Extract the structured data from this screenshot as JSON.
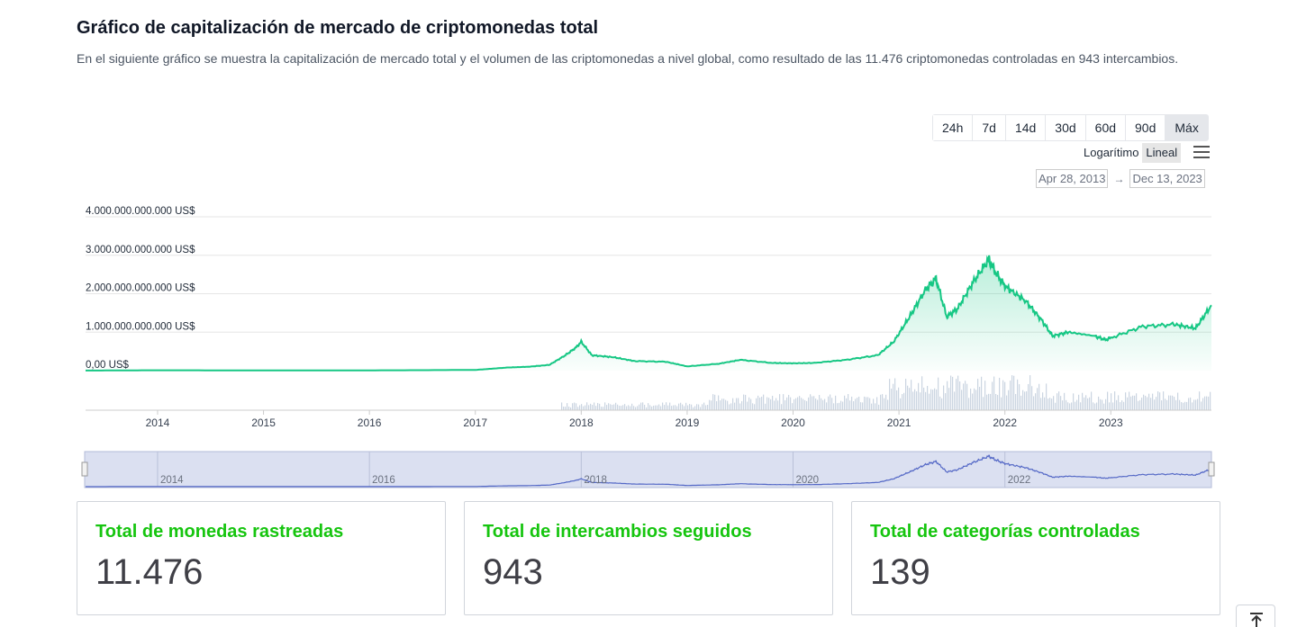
{
  "header": {
    "title": "Gráfico de capitalización de mercado de criptomonedas total",
    "description": "En el siguiente gráfico se muestra la capitalización de mercado total y el volumen de las criptomonedas a nivel global, como resultado de las 11.476 criptomonedas controladas en 943 intercambios."
  },
  "controls": {
    "ranges": [
      {
        "label": "24h",
        "active": false
      },
      {
        "label": "7d",
        "active": false
      },
      {
        "label": "14d",
        "active": false
      },
      {
        "label": "30d",
        "active": false
      },
      {
        "label": "60d",
        "active": false
      },
      {
        "label": "90d",
        "active": false
      },
      {
        "label": "Máx",
        "active": true
      }
    ],
    "scale_log": "Logarítimo",
    "scale_linear": "Lineal",
    "date_from": "Apr 28, 2013",
    "date_to": "Dec 13, 2023",
    "menu_icon": "hamburger-menu-icon"
  },
  "chart_data": {
    "type": "area",
    "ylim": [
      0,
      4000000000000
    ],
    "y_ticks": [
      "0,00 US$",
      "1.000.000.000.000 US$",
      "2.000.000.000.000 US$",
      "3.000.000.000.000 US$",
      "4.000.000.000.000 US$"
    ],
    "x_ticks": [
      "2014",
      "2015",
      "2016",
      "2017",
      "2018",
      "2019",
      "2020",
      "2021",
      "2022",
      "2023"
    ],
    "navigator_ticks": [
      "2014",
      "2016",
      "2018",
      "2020",
      "2022"
    ],
    "series": [
      {
        "name": "Capitalización de mercado",
        "color": "#16c784",
        "x": [
          2013.32,
          2014.0,
          2015.0,
          2016.0,
          2017.0,
          2017.3,
          2017.5,
          2017.7,
          2017.85,
          2017.95,
          2018.0,
          2018.1,
          2018.3,
          2018.5,
          2018.8,
          2019.0,
          2019.3,
          2019.5,
          2019.8,
          2020.0,
          2020.2,
          2020.5,
          2020.8,
          2020.95,
          2021.1,
          2021.25,
          2021.35,
          2021.45,
          2021.55,
          2021.7,
          2021.85,
          2021.9,
          2022.0,
          2022.2,
          2022.35,
          2022.45,
          2022.6,
          2022.85,
          2022.95,
          2023.0,
          2023.3,
          2023.6,
          2023.8,
          2023.95
        ],
        "y": [
          1500000000,
          10000000000,
          5000000000,
          7000000000,
          18000000000,
          80000000000,
          100000000000,
          150000000000,
          400000000000,
          600000000000,
          750000000000,
          400000000000,
          350000000000,
          250000000000,
          230000000000,
          110000000000,
          180000000000,
          280000000000,
          200000000000,
          190000000000,
          200000000000,
          280000000000,
          400000000000,
          750000000000,
          1400000000000,
          2100000000000,
          2400000000000,
          1400000000000,
          1600000000000,
          2300000000000,
          2900000000000,
          2600000000000,
          2200000000000,
          1800000000000,
          1300000000000,
          900000000000,
          1000000000000,
          900000000000,
          800000000000,
          850000000000,
          1150000000000,
          1200000000000,
          1100000000000,
          1700000000000
        ]
      },
      {
        "name": "Volumen",
        "color": "#cbd5e1"
      }
    ]
  },
  "stats": [
    {
      "label": "Total de monedas rastreadas",
      "value": "11.476"
    },
    {
      "label": "Total de intercambios seguidos",
      "value": "943"
    },
    {
      "label": "Total de categorías controladas",
      "value": "139"
    }
  ],
  "scroll_top_icon": "arrow-up-to-top-icon"
}
